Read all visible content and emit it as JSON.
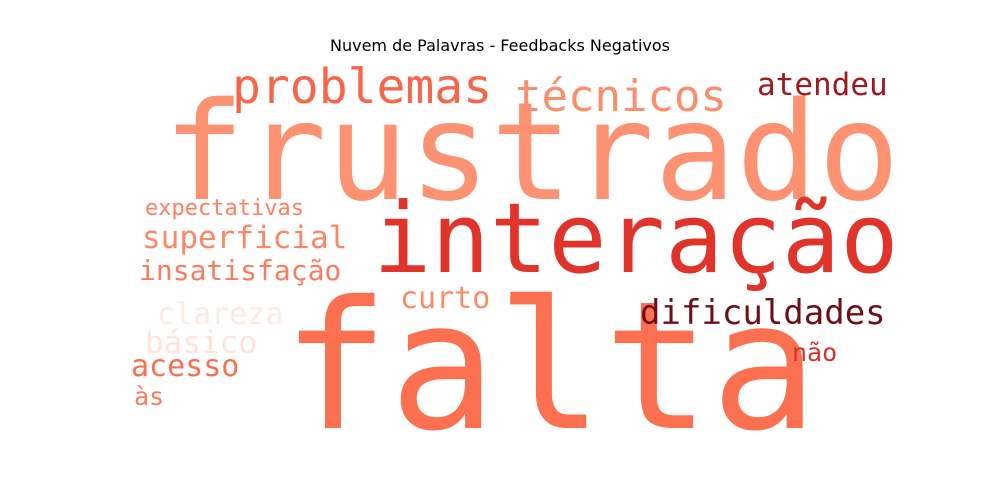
{
  "title": "Nuvem de Palavras - Feedbacks Negativos",
  "words": [
    {
      "text": "frustrado",
      "color": "#fc9272"
    },
    {
      "text": "interação",
      "color": "#e0342a"
    },
    {
      "text": "falta",
      "color": "#fb7050"
    },
    {
      "text": "problemas",
      "color": "#f7664b"
    },
    {
      "text": "técnicos",
      "color": "#fb8e6c"
    },
    {
      "text": "atendeu",
      "color": "#9f1a20"
    },
    {
      "text": "expectativas",
      "color": "#fc8060"
    },
    {
      "text": "superficial",
      "color": "#fc8767"
    },
    {
      "text": "insatisfação",
      "color": "#f97c5e"
    },
    {
      "text": "curto",
      "color": "#fb8a68"
    },
    {
      "text": "clareza",
      "color": "#feeae2"
    },
    {
      "text": "dificuldades",
      "color": "#6e0f17"
    },
    {
      "text": "básico",
      "color": "#fde5da"
    },
    {
      "text": "não",
      "color": "#d8332b"
    },
    {
      "text": "acesso",
      "color": "#f86f52"
    },
    {
      "text": "às",
      "color": "#fb7a5c"
    }
  ]
}
